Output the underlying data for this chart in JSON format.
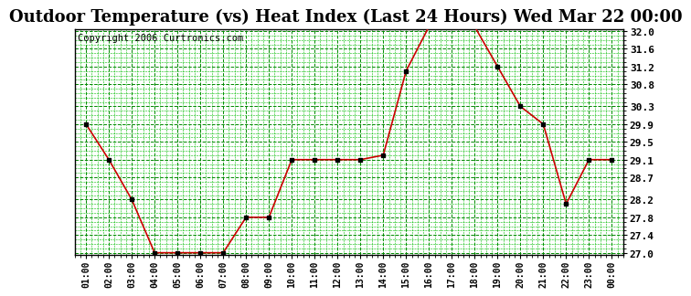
{
  "title": "Outdoor Temperature (vs) Heat Index (Last 24 Hours) Wed Mar 22 00:00",
  "copyright": "Copyright 2006 Curtronics.com",
  "x_labels": [
    "01:00",
    "02:00",
    "03:00",
    "04:00",
    "05:00",
    "06:00",
    "07:00",
    "08:00",
    "09:00",
    "10:00",
    "11:00",
    "12:00",
    "13:00",
    "14:00",
    "15:00",
    "16:00",
    "17:00",
    "18:00",
    "19:00",
    "20:00",
    "21:00",
    "22:00",
    "23:00",
    "00:00"
  ],
  "y_values": [
    29.9,
    29.1,
    28.2,
    27.0,
    27.0,
    27.0,
    27.0,
    27.8,
    27.8,
    29.1,
    29.1,
    29.1,
    29.1,
    29.2,
    31.1,
    32.1,
    32.1,
    32.1,
    31.2,
    30.3,
    29.9,
    28.1,
    29.1,
    29.1
  ],
  "y_min": 27.0,
  "y_max": 32.0,
  "y_ticks": [
    27.0,
    27.4,
    27.8,
    28.2,
    28.7,
    29.1,
    29.5,
    29.9,
    30.3,
    30.8,
    31.2,
    31.6,
    32.0
  ],
  "line_color": "#cc0000",
  "marker_color": "#000000",
  "bg_color": "#ffffff",
  "plot_bg_color": "#ffffff",
  "grid_color_major": "#008800",
  "grid_color_minor": "#00bb00",
  "border_color": "#000000",
  "title_fontsize": 13,
  "copyright_fontsize": 7.5,
  "tick_fontsize": 8,
  "x_tick_fontsize": 7
}
